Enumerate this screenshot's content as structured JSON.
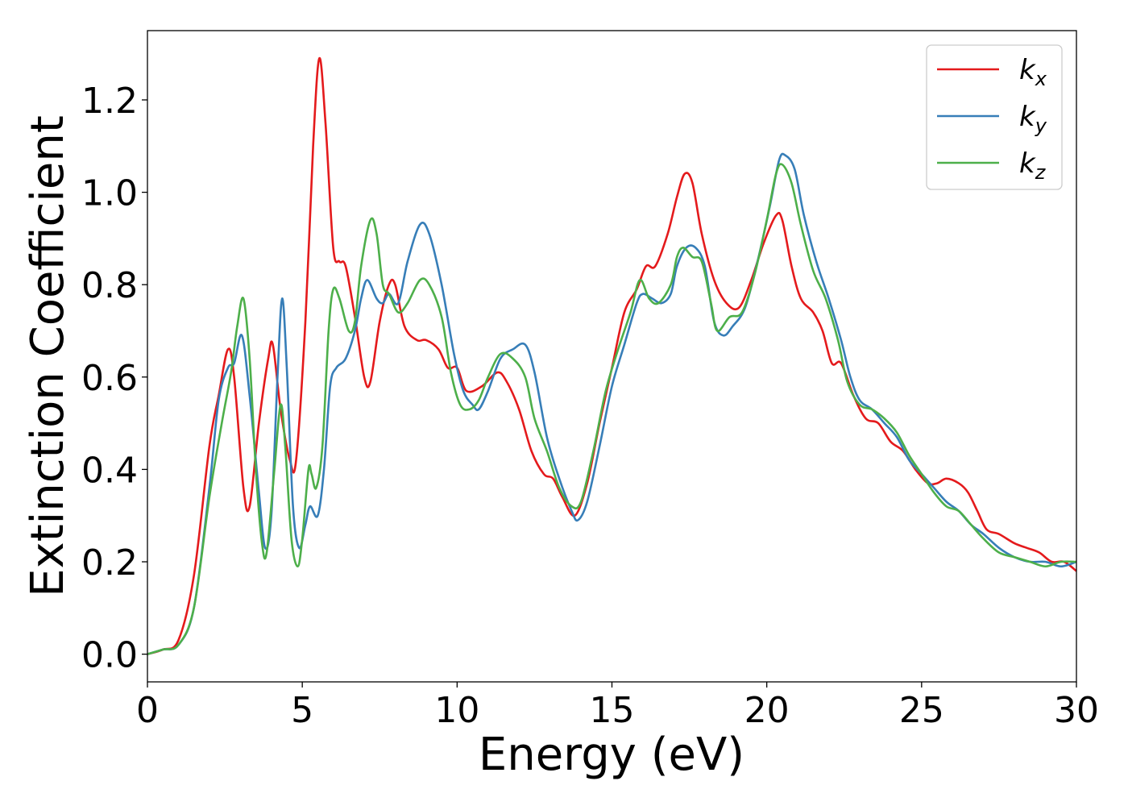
{
  "chart_data": {
    "type": "line",
    "title": "",
    "xlabel": "Energy (eV)",
    "ylabel": "Extinction Coefficient",
    "xlim": [
      0,
      30
    ],
    "ylim": [
      -0.06,
      1.35
    ],
    "x_ticks": [
      0,
      5,
      10,
      15,
      20,
      25,
      30
    ],
    "y_ticks": [
      0.0,
      0.2,
      0.4,
      0.6,
      0.8,
      1.0,
      1.2
    ],
    "x_tick_labels": [
      "0",
      "5",
      "10",
      "15",
      "20",
      "25",
      "30"
    ],
    "y_tick_labels": [
      "0.0",
      "0.2",
      "0.4",
      "0.6",
      "0.8",
      "1.0",
      "1.2"
    ],
    "grid": false,
    "legend_position": "top-right",
    "series": [
      {
        "name": "k_x",
        "label_base": "k",
        "label_sub": "x",
        "color": "#e41a1c",
        "points": [
          [
            0,
            0
          ],
          [
            0.5,
            0.01
          ],
          [
            1.0,
            0.03
          ],
          [
            1.5,
            0.17
          ],
          [
            2.0,
            0.45
          ],
          [
            2.3,
            0.56
          ],
          [
            2.6,
            0.66
          ],
          [
            2.8,
            0.6
          ],
          [
            3.1,
            0.36
          ],
          [
            3.3,
            0.32
          ],
          [
            3.6,
            0.5
          ],
          [
            3.9,
            0.64
          ],
          [
            4.05,
            0.67
          ],
          [
            4.3,
            0.53
          ],
          [
            4.6,
            0.42
          ],
          [
            4.8,
            0.42
          ],
          [
            5.1,
            0.72
          ],
          [
            5.35,
            1.1
          ],
          [
            5.55,
            1.29
          ],
          [
            5.75,
            1.15
          ],
          [
            6.0,
            0.88
          ],
          [
            6.2,
            0.85
          ],
          [
            6.4,
            0.84
          ],
          [
            6.7,
            0.73
          ],
          [
            7.0,
            0.6
          ],
          [
            7.2,
            0.59
          ],
          [
            7.5,
            0.72
          ],
          [
            7.8,
            0.8
          ],
          [
            8.0,
            0.8
          ],
          [
            8.3,
            0.71
          ],
          [
            8.7,
            0.68
          ],
          [
            9.0,
            0.68
          ],
          [
            9.4,
            0.66
          ],
          [
            9.7,
            0.62
          ],
          [
            10.0,
            0.62
          ],
          [
            10.3,
            0.57
          ],
          [
            10.8,
            0.58
          ],
          [
            11.3,
            0.61
          ],
          [
            11.6,
            0.59
          ],
          [
            12.0,
            0.53
          ],
          [
            12.4,
            0.44
          ],
          [
            12.8,
            0.39
          ],
          [
            13.1,
            0.38
          ],
          [
            13.4,
            0.34
          ],
          [
            13.8,
            0.3
          ],
          [
            14.2,
            0.37
          ],
          [
            14.6,
            0.5
          ],
          [
            15.0,
            0.62
          ],
          [
            15.4,
            0.74
          ],
          [
            15.8,
            0.79
          ],
          [
            16.1,
            0.84
          ],
          [
            16.4,
            0.84
          ],
          [
            16.8,
            0.91
          ],
          [
            17.1,
            0.99
          ],
          [
            17.35,
            1.04
          ],
          [
            17.6,
            1.02
          ],
          [
            17.9,
            0.91
          ],
          [
            18.3,
            0.81
          ],
          [
            18.7,
            0.76
          ],
          [
            19.1,
            0.75
          ],
          [
            19.5,
            0.81
          ],
          [
            19.9,
            0.89
          ],
          [
            20.3,
            0.95
          ],
          [
            20.5,
            0.94
          ],
          [
            20.8,
            0.84
          ],
          [
            21.1,
            0.77
          ],
          [
            21.5,
            0.74
          ],
          [
            21.8,
            0.7
          ],
          [
            22.1,
            0.63
          ],
          [
            22.4,
            0.63
          ],
          [
            22.8,
            0.56
          ],
          [
            23.2,
            0.51
          ],
          [
            23.6,
            0.5
          ],
          [
            24.0,
            0.46
          ],
          [
            24.4,
            0.44
          ],
          [
            24.8,
            0.4
          ],
          [
            25.2,
            0.37
          ],
          [
            25.5,
            0.37
          ],
          [
            25.8,
            0.38
          ],
          [
            26.2,
            0.37
          ],
          [
            26.5,
            0.35
          ],
          [
            26.8,
            0.31
          ],
          [
            27.1,
            0.27
          ],
          [
            27.5,
            0.26
          ],
          [
            28.0,
            0.24
          ],
          [
            28.4,
            0.23
          ],
          [
            28.8,
            0.22
          ],
          [
            29.2,
            0.2
          ],
          [
            29.6,
            0.2
          ],
          [
            30.0,
            0.18
          ]
        ]
      },
      {
        "name": "k_y",
        "label_base": "k",
        "label_sub": "y",
        "color": "#377eb8",
        "points": [
          [
            0,
            0
          ],
          [
            0.5,
            0.01
          ],
          [
            1.0,
            0.02
          ],
          [
            1.5,
            0.1
          ],
          [
            2.0,
            0.36
          ],
          [
            2.3,
            0.55
          ],
          [
            2.6,
            0.62
          ],
          [
            2.8,
            0.63
          ],
          [
            3.05,
            0.69
          ],
          [
            3.3,
            0.56
          ],
          [
            3.6,
            0.35
          ],
          [
            3.8,
            0.23
          ],
          [
            4.0,
            0.3
          ],
          [
            4.2,
            0.6
          ],
          [
            4.35,
            0.77
          ],
          [
            4.5,
            0.62
          ],
          [
            4.7,
            0.32
          ],
          [
            4.9,
            0.23
          ],
          [
            5.1,
            0.28
          ],
          [
            5.25,
            0.32
          ],
          [
            5.5,
            0.3
          ],
          [
            5.7,
            0.4
          ],
          [
            5.9,
            0.58
          ],
          [
            6.1,
            0.62
          ],
          [
            6.4,
            0.64
          ],
          [
            6.7,
            0.7
          ],
          [
            6.9,
            0.77
          ],
          [
            7.1,
            0.81
          ],
          [
            7.4,
            0.77
          ],
          [
            7.6,
            0.76
          ],
          [
            7.8,
            0.78
          ],
          [
            8.1,
            0.76
          ],
          [
            8.4,
            0.85
          ],
          [
            8.8,
            0.93
          ],
          [
            9.1,
            0.91
          ],
          [
            9.5,
            0.8
          ],
          [
            9.9,
            0.65
          ],
          [
            10.2,
            0.57
          ],
          [
            10.5,
            0.54
          ],
          [
            10.7,
            0.53
          ],
          [
            11.0,
            0.57
          ],
          [
            11.4,
            0.64
          ],
          [
            11.8,
            0.66
          ],
          [
            12.2,
            0.67
          ],
          [
            12.5,
            0.61
          ],
          [
            12.9,
            0.47
          ],
          [
            13.3,
            0.38
          ],
          [
            13.7,
            0.31
          ],
          [
            13.9,
            0.29
          ],
          [
            14.2,
            0.33
          ],
          [
            14.6,
            0.45
          ],
          [
            15.0,
            0.58
          ],
          [
            15.4,
            0.67
          ],
          [
            15.8,
            0.76
          ],
          [
            16.0,
            0.78
          ],
          [
            16.3,
            0.77
          ],
          [
            16.6,
            0.76
          ],
          [
            16.9,
            0.78
          ],
          [
            17.1,
            0.84
          ],
          [
            17.4,
            0.88
          ],
          [
            17.7,
            0.88
          ],
          [
            18.0,
            0.84
          ],
          [
            18.3,
            0.72
          ],
          [
            18.6,
            0.69
          ],
          [
            18.9,
            0.71
          ],
          [
            19.3,
            0.75
          ],
          [
            19.7,
            0.85
          ],
          [
            20.1,
            0.97
          ],
          [
            20.4,
            1.07
          ],
          [
            20.6,
            1.08
          ],
          [
            20.9,
            1.05
          ],
          [
            21.2,
            0.95
          ],
          [
            21.6,
            0.85
          ],
          [
            22.0,
            0.77
          ],
          [
            22.4,
            0.68
          ],
          [
            22.7,
            0.6
          ],
          [
            23.0,
            0.55
          ],
          [
            23.4,
            0.53
          ],
          [
            23.8,
            0.5
          ],
          [
            24.2,
            0.47
          ],
          [
            24.6,
            0.42
          ],
          [
            25.0,
            0.39
          ],
          [
            25.4,
            0.36
          ],
          [
            25.8,
            0.33
          ],
          [
            26.2,
            0.31
          ],
          [
            26.6,
            0.28
          ],
          [
            27.0,
            0.26
          ],
          [
            27.5,
            0.23
          ],
          [
            28.0,
            0.21
          ],
          [
            28.5,
            0.2
          ],
          [
            29.0,
            0.2
          ],
          [
            29.5,
            0.19
          ],
          [
            30.0,
            0.2
          ]
        ]
      },
      {
        "name": "k_z",
        "label_base": "k",
        "label_sub": "z",
        "color": "#4daf4a",
        "points": [
          [
            0,
            0
          ],
          [
            0.5,
            0.01
          ],
          [
            1.0,
            0.02
          ],
          [
            1.5,
            0.1
          ],
          [
            2.0,
            0.34
          ],
          [
            2.4,
            0.5
          ],
          [
            2.7,
            0.61
          ],
          [
            2.9,
            0.71
          ],
          [
            3.1,
            0.77
          ],
          [
            3.3,
            0.64
          ],
          [
            3.5,
            0.4
          ],
          [
            3.7,
            0.24
          ],
          [
            3.85,
            0.22
          ],
          [
            4.1,
            0.4
          ],
          [
            4.3,
            0.54
          ],
          [
            4.45,
            0.45
          ],
          [
            4.65,
            0.25
          ],
          [
            4.85,
            0.19
          ],
          [
            5.0,
            0.25
          ],
          [
            5.2,
            0.4
          ],
          [
            5.3,
            0.39
          ],
          [
            5.45,
            0.36
          ],
          [
            5.65,
            0.45
          ],
          [
            5.85,
            0.7
          ],
          [
            6.0,
            0.79
          ],
          [
            6.2,
            0.77
          ],
          [
            6.5,
            0.7
          ],
          [
            6.7,
            0.72
          ],
          [
            6.9,
            0.84
          ],
          [
            7.2,
            0.94
          ],
          [
            7.4,
            0.91
          ],
          [
            7.6,
            0.8
          ],
          [
            7.8,
            0.78
          ],
          [
            8.1,
            0.74
          ],
          [
            8.4,
            0.76
          ],
          [
            8.8,
            0.81
          ],
          [
            9.1,
            0.8
          ],
          [
            9.5,
            0.73
          ],
          [
            9.8,
            0.61
          ],
          [
            10.1,
            0.54
          ],
          [
            10.4,
            0.53
          ],
          [
            10.7,
            0.55
          ],
          [
            11.0,
            0.6
          ],
          [
            11.4,
            0.65
          ],
          [
            11.8,
            0.64
          ],
          [
            12.2,
            0.6
          ],
          [
            12.5,
            0.51
          ],
          [
            12.9,
            0.44
          ],
          [
            13.3,
            0.36
          ],
          [
            13.7,
            0.32
          ],
          [
            14.0,
            0.33
          ],
          [
            14.4,
            0.44
          ],
          [
            14.8,
            0.57
          ],
          [
            15.2,
            0.66
          ],
          [
            15.6,
            0.74
          ],
          [
            15.9,
            0.81
          ],
          [
            16.2,
            0.77
          ],
          [
            16.5,
            0.76
          ],
          [
            16.9,
            0.8
          ],
          [
            17.1,
            0.86
          ],
          [
            17.3,
            0.88
          ],
          [
            17.6,
            0.86
          ],
          [
            17.9,
            0.85
          ],
          [
            18.2,
            0.76
          ],
          [
            18.4,
            0.7
          ],
          [
            18.8,
            0.73
          ],
          [
            19.2,
            0.74
          ],
          [
            19.6,
            0.82
          ],
          [
            20.0,
            0.94
          ],
          [
            20.3,
            1.04
          ],
          [
            20.5,
            1.06
          ],
          [
            20.8,
            1.02
          ],
          [
            21.1,
            0.93
          ],
          [
            21.5,
            0.83
          ],
          [
            21.9,
            0.77
          ],
          [
            22.3,
            0.68
          ],
          [
            22.6,
            0.59
          ],
          [
            23.0,
            0.54
          ],
          [
            23.4,
            0.53
          ],
          [
            23.8,
            0.51
          ],
          [
            24.2,
            0.48
          ],
          [
            24.6,
            0.43
          ],
          [
            25.0,
            0.39
          ],
          [
            25.4,
            0.35
          ],
          [
            25.8,
            0.32
          ],
          [
            26.2,
            0.31
          ],
          [
            26.6,
            0.28
          ],
          [
            27.0,
            0.25
          ],
          [
            27.5,
            0.22
          ],
          [
            28.0,
            0.21
          ],
          [
            28.5,
            0.2
          ],
          [
            29.0,
            0.19
          ],
          [
            29.5,
            0.2
          ],
          [
            30.0,
            0.2
          ]
        ]
      }
    ]
  }
}
